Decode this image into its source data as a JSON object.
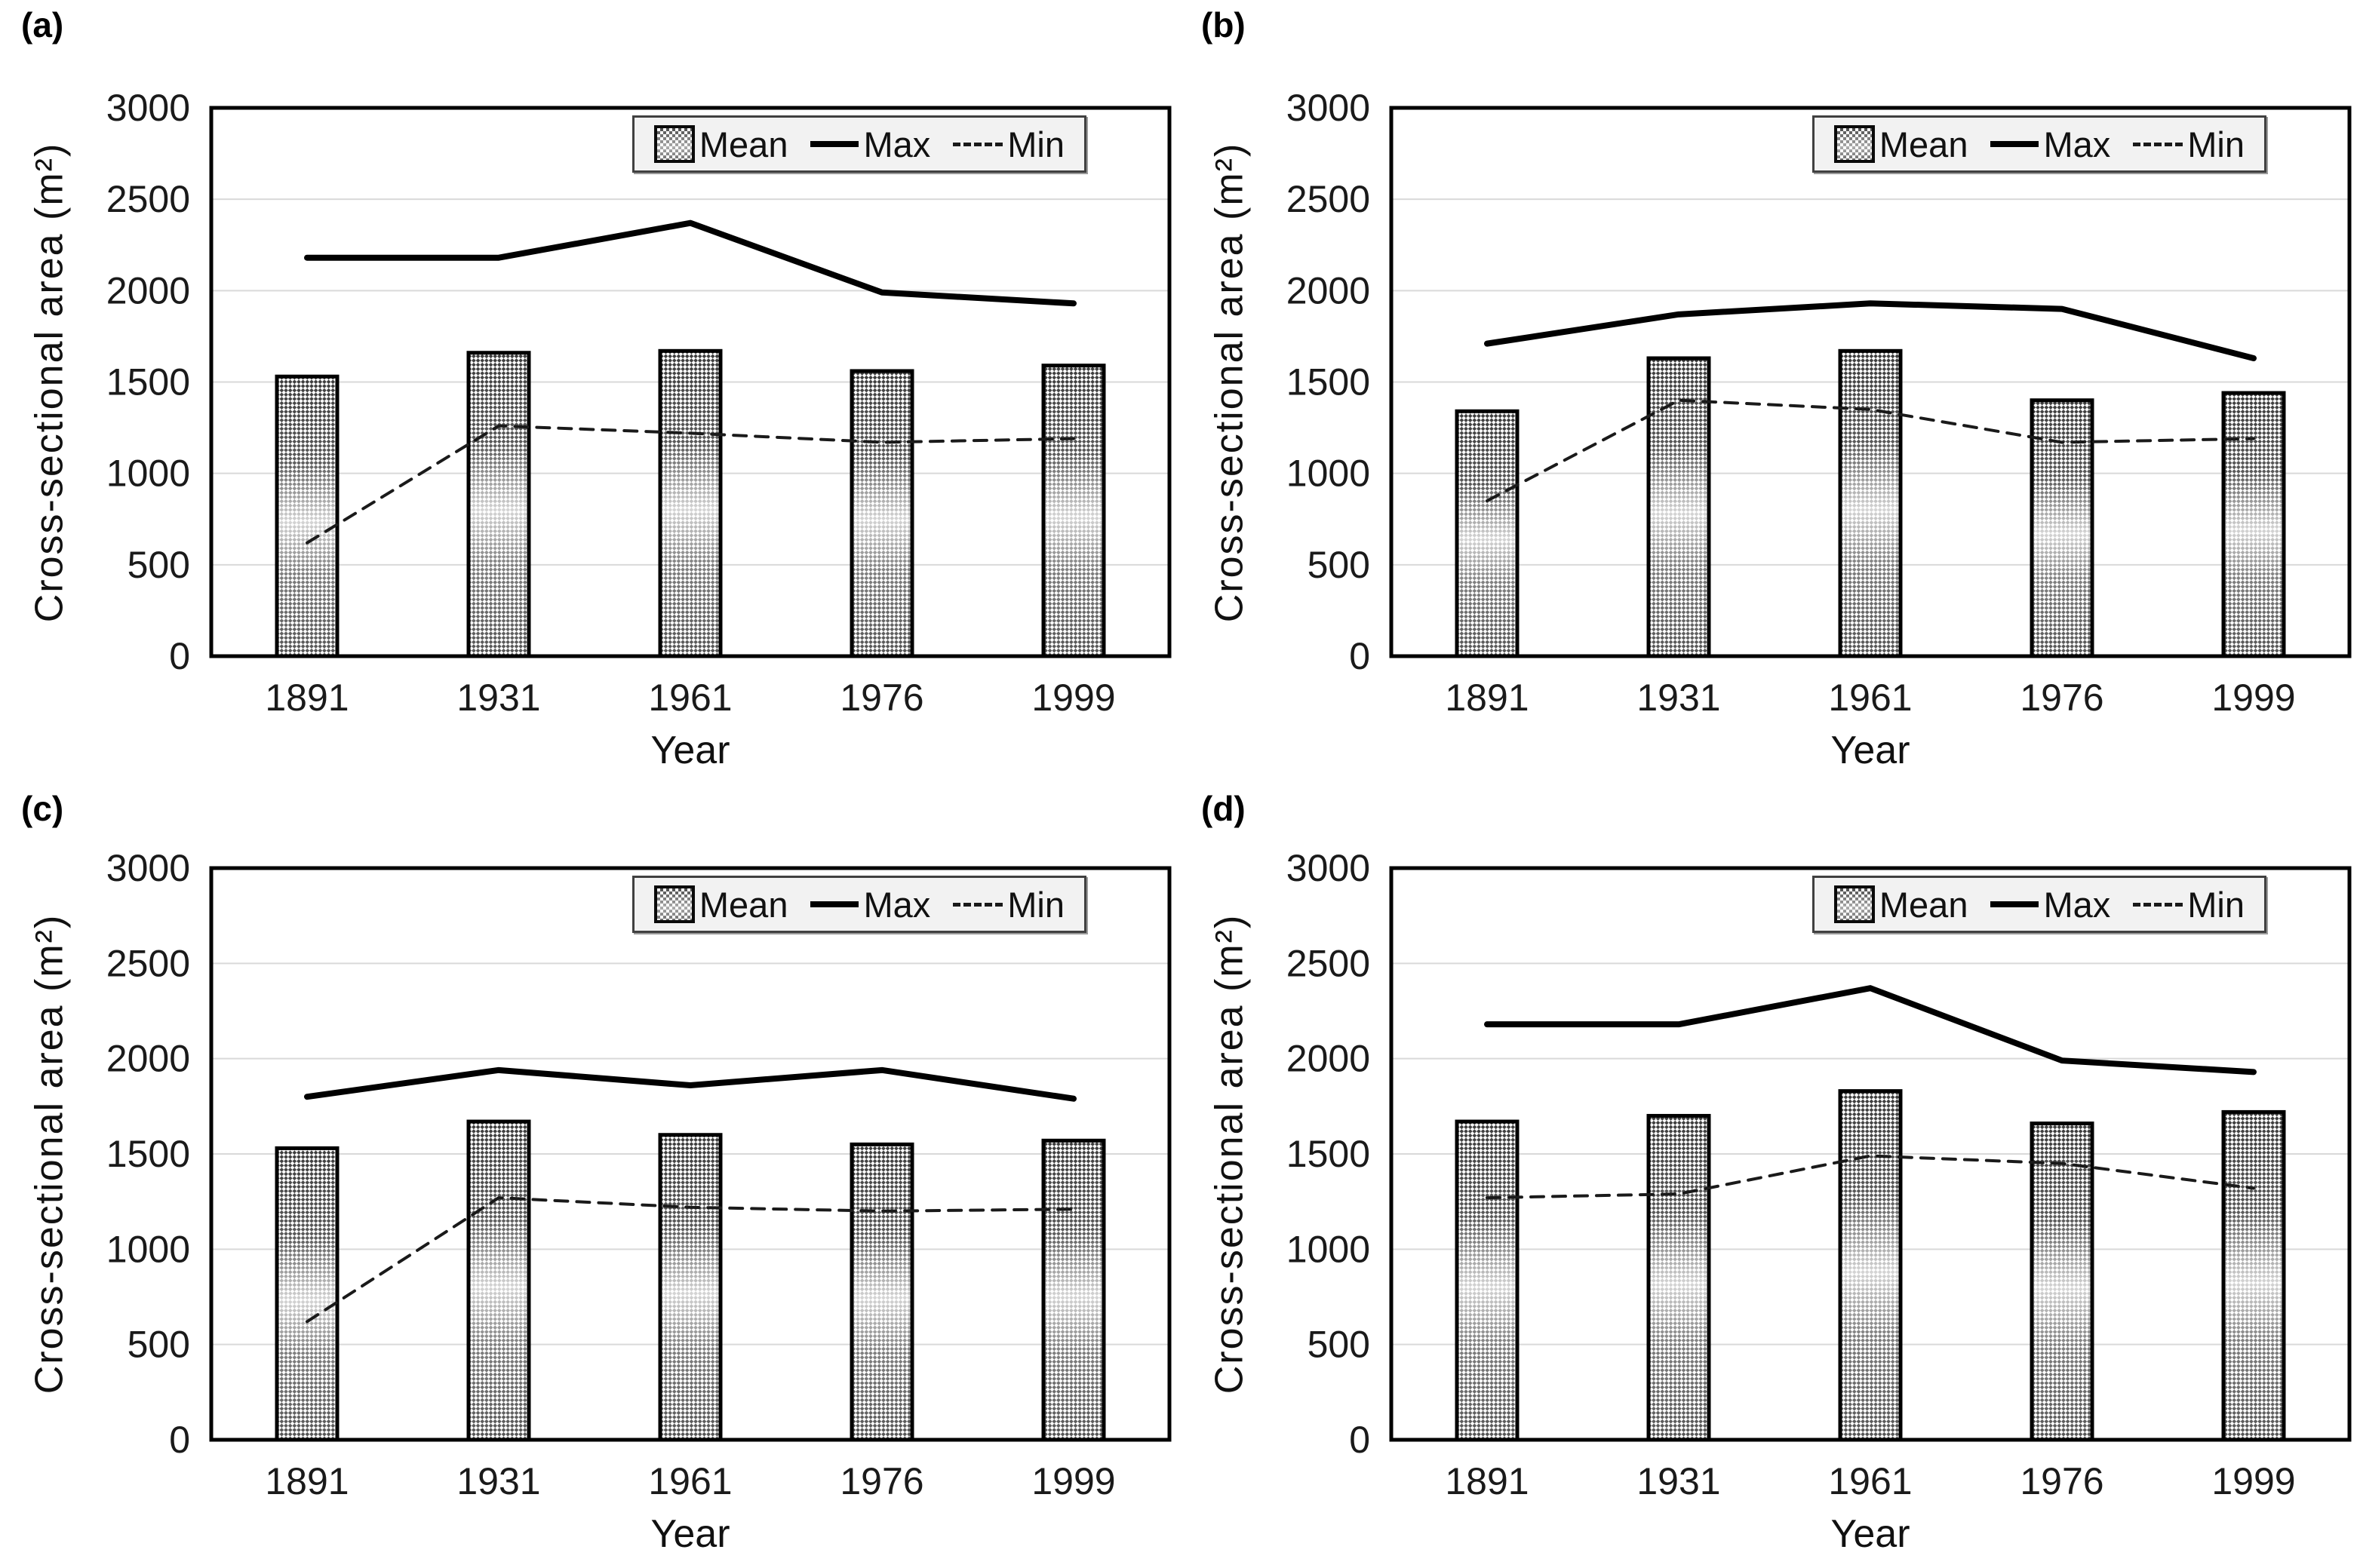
{
  "figure": {
    "y_axis_label": "Cross-sectional area (m²)",
    "x_axis_label": "Year",
    "legend": {
      "mean_label": "Mean",
      "max_label": "Max",
      "min_label": "Min"
    },
    "colors": {
      "background": "#ffffff",
      "grid": "#d9d9d9",
      "axis_border": "#000000",
      "max_line": "#000000",
      "min_line": "#1a1a1a",
      "bar_pattern_dark": "#3c3c3c",
      "bar_pattern_light": "#fdfdfd",
      "legend_bg": "#f2f2f2",
      "legend_border": "#404040",
      "text": "#1a1a1a"
    }
  },
  "chart_data": [
    {
      "panel_label": "(a)",
      "type": "bar+line",
      "categories": [
        "1891",
        "1931",
        "1961",
        "1976",
        "1999"
      ],
      "series": [
        {
          "name": "Mean",
          "type": "bar",
          "values": [
            1530,
            1660,
            1670,
            1560,
            1590
          ]
        },
        {
          "name": "Max",
          "type": "line",
          "dashed": false,
          "values": [
            2180,
            2180,
            2370,
            1990,
            1930
          ]
        },
        {
          "name": "Min",
          "type": "line",
          "dashed": true,
          "values": [
            620,
            1260,
            1220,
            1170,
            1190
          ]
        }
      ],
      "xlabel": "Year",
      "ylabel": "Cross-sectional area (m²)",
      "ylim": [
        0,
        3000
      ],
      "yticks": [
        0,
        500,
        1000,
        1500,
        2000,
        2500,
        3000
      ],
      "grid": true,
      "legend_position": "top-right-inside"
    },
    {
      "panel_label": "(b)",
      "type": "bar+line",
      "categories": [
        "1891",
        "1931",
        "1961",
        "1976",
        "1999"
      ],
      "series": [
        {
          "name": "Mean",
          "type": "bar",
          "values": [
            1340,
            1630,
            1670,
            1400,
            1440
          ]
        },
        {
          "name": "Max",
          "type": "line",
          "dashed": false,
          "values": [
            1710,
            1870,
            1930,
            1900,
            1630
          ]
        },
        {
          "name": "Min",
          "type": "line",
          "dashed": true,
          "values": [
            850,
            1400,
            1350,
            1170,
            1190
          ]
        }
      ],
      "xlabel": "Year",
      "ylabel": "Cross-sectional area (m²)",
      "ylim": [
        0,
        3000
      ],
      "yticks": [
        0,
        500,
        1000,
        1500,
        2000,
        2500,
        3000
      ],
      "grid": true,
      "legend_position": "top-right-inside"
    },
    {
      "panel_label": "(c)",
      "type": "bar+line",
      "categories": [
        "1891",
        "1931",
        "1961",
        "1976",
        "1999"
      ],
      "series": [
        {
          "name": "Mean",
          "type": "bar",
          "values": [
            1530,
            1670,
            1600,
            1550,
            1570
          ]
        },
        {
          "name": "Max",
          "type": "line",
          "dashed": false,
          "values": [
            1800,
            1940,
            1860,
            1940,
            1790
          ]
        },
        {
          "name": "Min",
          "type": "line",
          "dashed": true,
          "values": [
            620,
            1270,
            1220,
            1200,
            1210
          ]
        }
      ],
      "xlabel": "Year",
      "ylabel": "Cross-sectional area (m²)",
      "ylim": [
        0,
        3000
      ],
      "yticks": [
        0,
        500,
        1000,
        1500,
        2000,
        2500,
        3000
      ],
      "grid": true,
      "legend_position": "top-right-inside"
    },
    {
      "panel_label": "(d)",
      "type": "bar+line",
      "categories": [
        "1891",
        "1931",
        "1961",
        "1976",
        "1999"
      ],
      "series": [
        {
          "name": "Mean",
          "type": "bar",
          "values": [
            1670,
            1700,
            1830,
            1660,
            1720
          ]
        },
        {
          "name": "Max",
          "type": "line",
          "dashed": false,
          "values": [
            2180,
            2180,
            2370,
            1990,
            1930
          ]
        },
        {
          "name": "Min",
          "type": "line",
          "dashed": true,
          "values": [
            1270,
            1290,
            1490,
            1450,
            1320
          ]
        }
      ],
      "xlabel": "Year",
      "ylabel": "Cross-sectional area (m²)",
      "ylim": [
        0,
        3000
      ],
      "yticks": [
        0,
        500,
        1000,
        1500,
        2000,
        2500,
        3000
      ],
      "grid": true,
      "legend_position": "top-right-inside"
    }
  ]
}
